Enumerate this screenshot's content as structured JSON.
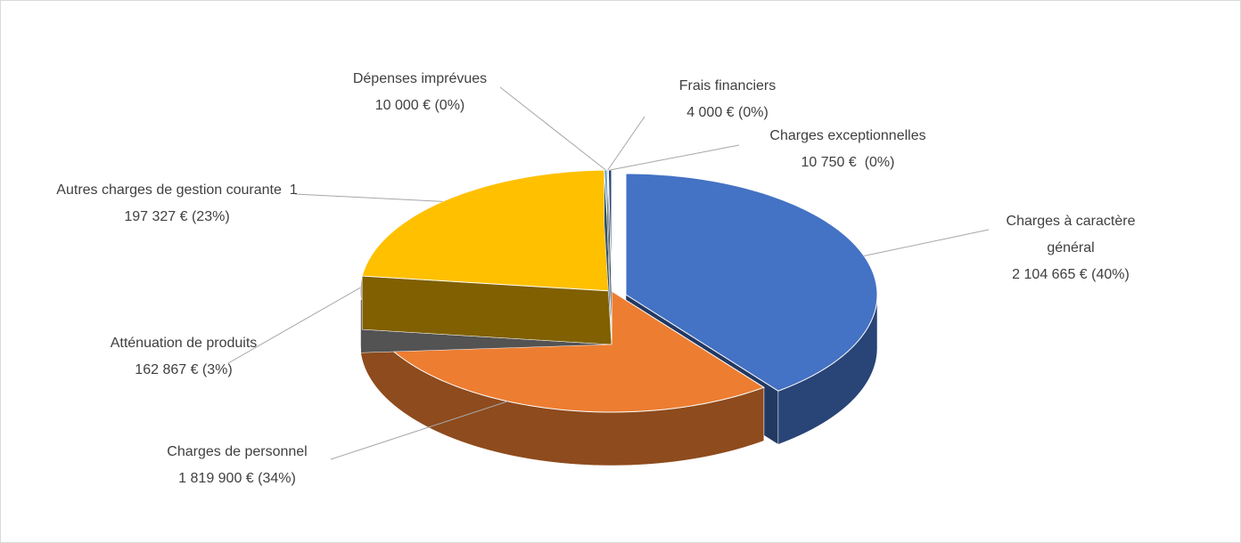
{
  "chart_data": {
    "type": "pie",
    "categories": [
      "Charges à caractère général",
      "Charges de personnel",
      "Atténuation de produits",
      "Autres charges de gestion courante",
      "Dépenses imprévues",
      "Frais financiers",
      "Charges exceptionnelles"
    ],
    "values": [
      2104665,
      1819900,
      162867,
      1197327,
      10000,
      4000,
      10750
    ],
    "value_labels": [
      "2 104 665 € (40%)",
      "1 819 900 € (34%)",
      "162 867 € (3%)",
      "1 197 327 € (23%)",
      "10 000 € (0%)",
      "4 000 € (0%)",
      "10 750 €  (0%)"
    ],
    "colors": [
      "#4472c4",
      "#ed7d31",
      "#a5a5a5",
      "#ffc000",
      "#5b9bd5",
      "#70ad47",
      "#264478"
    ]
  }
}
